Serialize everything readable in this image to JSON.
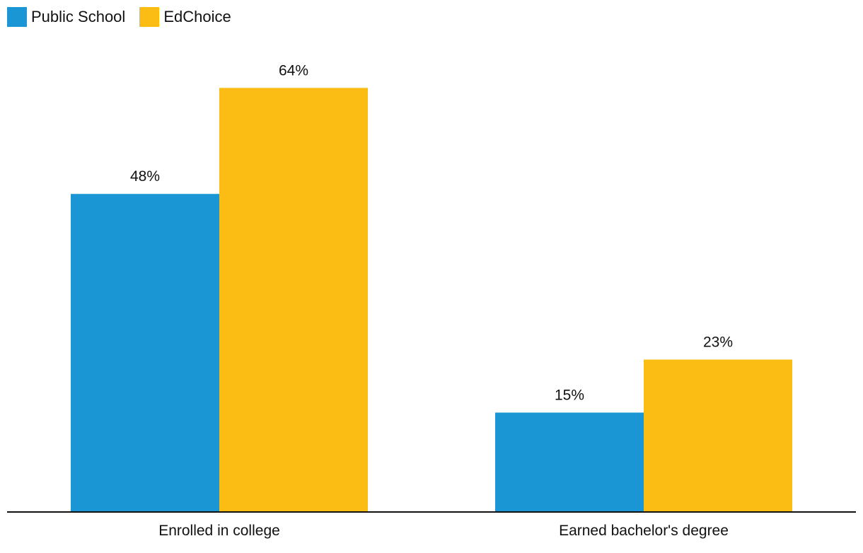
{
  "chart_data": {
    "type": "bar",
    "title": "",
    "xlabel": "",
    "ylabel": "",
    "ylim": [
      0,
      70
    ],
    "grid": false,
    "legend_position": "top-left",
    "categories": [
      "Enrolled in college",
      "Earned bachelor's degree"
    ],
    "series": [
      {
        "name": "Public School",
        "color": "#1996d3",
        "values": [
          48,
          15
        ],
        "labels": [
          "48%",
          "15%"
        ]
      },
      {
        "name": "EdChoice",
        "color": "#fbbd13",
        "values": [
          64,
          23
        ],
        "labels": [
          "64%",
          "23%"
        ]
      }
    ]
  }
}
